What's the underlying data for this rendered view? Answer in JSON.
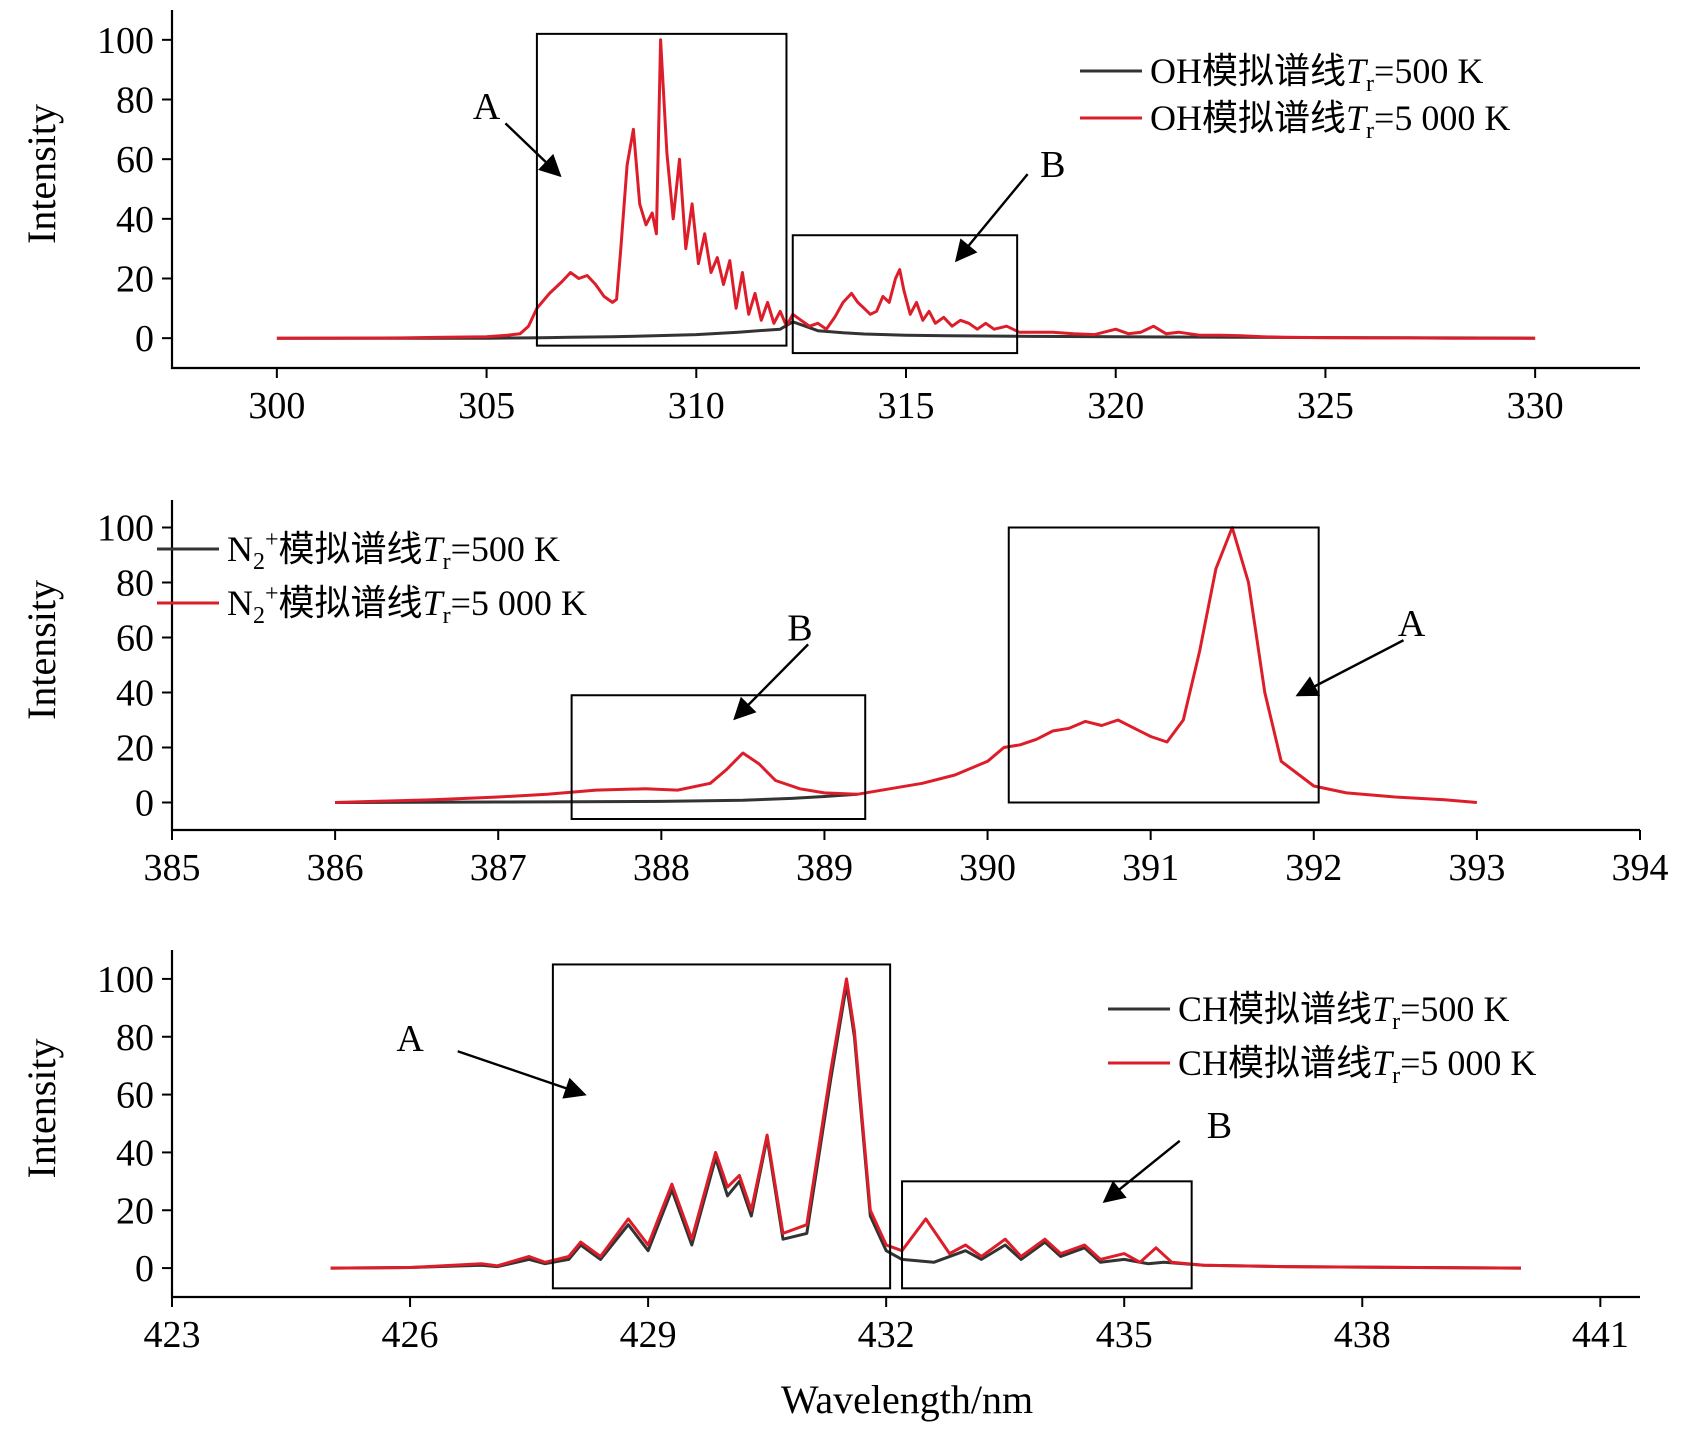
{
  "x_axis_title": "Wavelength/nm",
  "chart_data": [
    {
      "type": "line",
      "ylabel": "Intensity",
      "xlabel": "",
      "xlim": [
        297.5,
        332.5
      ],
      "ylim": [
        -10,
        110
      ],
      "xticks": [
        300,
        305,
        310,
        315,
        320,
        325,
        330
      ],
      "yticks": [
        0,
        20,
        40,
        60,
        80,
        100
      ],
      "legend_position": "top-right",
      "series": [
        {
          "legend": {
            "species": "OH",
            "text": "模拟谱线",
            "subscript": "r",
            "value": "=500 K"
          },
          "color": "#333333",
          "x": [
            300,
            305,
            306,
            306.5,
            307,
            308,
            309,
            310,
            311,
            312,
            312.3,
            312.6,
            312.9,
            313.5,
            314,
            315,
            316,
            318,
            320,
            323,
            325,
            330
          ],
          "y": [
            0,
            0,
            0.1,
            0.2,
            0.3,
            0.5,
            0.8,
            1.2,
            2,
            3,
            5.5,
            4,
            2.5,
            1.8,
            1.4,
            1,
            0.8,
            0.6,
            0.5,
            0.3,
            0.2,
            0
          ]
        },
        {
          "legend": {
            "species": "OH",
            "text": "模拟谱线",
            "subscript": "r",
            "value": "=5 000 K"
          },
          "color": "#dd1e2a",
          "x": [
            300,
            303,
            304,
            305,
            305.5,
            305.8,
            306,
            306.2,
            306.5,
            306.8,
            307,
            307.2,
            307.4,
            307.6,
            307.8,
            308,
            308.1,
            308.2,
            308.35,
            308.5,
            308.65,
            308.8,
            308.95,
            309.05,
            309.15,
            309.3,
            309.45,
            309.6,
            309.75,
            309.9,
            310.05,
            310.2,
            310.35,
            310.5,
            310.65,
            310.8,
            310.95,
            311.1,
            311.25,
            311.4,
            311.55,
            311.7,
            311.85,
            312.0,
            312.15,
            312.3,
            312.5,
            312.7,
            312.9,
            313.1,
            313.3,
            313.5,
            313.7,
            313.85,
            314.0,
            314.15,
            314.3,
            314.45,
            314.6,
            314.75,
            314.85,
            314.95,
            315.1,
            315.25,
            315.4,
            315.55,
            315.7,
            315.9,
            316.1,
            316.3,
            316.5,
            316.7,
            316.9,
            317.1,
            317.4,
            317.7,
            318.0,
            318.5,
            319.0,
            319.5,
            320.0,
            320.3,
            320.6,
            320.9,
            321.2,
            321.5,
            322.0,
            322.5,
            323.0,
            323.5,
            324,
            325,
            326,
            327,
            328,
            330
          ],
          "y": [
            0,
            0.1,
            0.3,
            0.5,
            1,
            1.5,
            4,
            10,
            15,
            19,
            22,
            20,
            21,
            18,
            14,
            12,
            13,
            30,
            58,
            70,
            45,
            38,
            42,
            35,
            100,
            62,
            40,
            60,
            30,
            45,
            25,
            35,
            22,
            27,
            18,
            26,
            10,
            22,
            8,
            15,
            6,
            12,
            5,
            9,
            4,
            8,
            6,
            4,
            5,
            3,
            7,
            12,
            15,
            12,
            10,
            8,
            9,
            14,
            12,
            20,
            23,
            16,
            8,
            12,
            6,
            9,
            5,
            7,
            4,
            6,
            5,
            3,
            5,
            3,
            4,
            2,
            2,
            2,
            1.5,
            1.2,
            3,
            1.5,
            2,
            4,
            1.5,
            2,
            1,
            1,
            0.8,
            0.5,
            0.3,
            0.2,
            0.1,
            0.1,
            0,
            0
          ]
        }
      ],
      "boxes": [
        {
          "label": "A",
          "x0": 306.2,
          "x1": 312.15,
          "y0": -2.5,
          "y1": 102
        },
        {
          "label": "B",
          "x0": 312.3,
          "x1": 317.65,
          "y0": -5,
          "y1": 34.5
        }
      ],
      "annotations": [
        {
          "text": "A",
          "x": 305.0,
          "y": 73.5,
          "arrow_from": [
            305.45,
            72
          ],
          "arrow_to": [
            306.75,
            54.5
          ]
        },
        {
          "text": "B",
          "x": 318.5,
          "y": 54,
          "arrow_from": [
            317.9,
            55
          ],
          "arrow_to": [
            316.2,
            26
          ]
        }
      ]
    },
    {
      "type": "line",
      "ylabel": "Intensity",
      "xlabel": "",
      "xlim": [
        385,
        394
      ],
      "ylim": [
        -10,
        110
      ],
      "xticks": [
        385,
        386,
        387,
        388,
        389,
        390,
        391,
        392,
        393,
        394
      ],
      "yticks": [
        0,
        20,
        40,
        60,
        80,
        100
      ],
      "legend_position": "top-left",
      "series": [
        {
          "legend": {
            "species": "N",
            "species_sub": "2",
            "species_sup": "+",
            "text": "模拟谱线",
            "subscript": "r",
            "value": "=500 K"
          },
          "color": "#333333",
          "x": [
            386,
            386.5,
            387,
            387.5,
            388,
            388.5,
            388.8,
            389,
            389.2
          ],
          "y": [
            0,
            0.1,
            0.2,
            0.3,
            0.4,
            0.8,
            1.5,
            2.2,
            3.0
          ]
        },
        {
          "legend": {
            "species": "N",
            "species_sub": "2",
            "species_sup": "+",
            "text": "模拟谱线",
            "subscript": "r",
            "value": "=5 000 K"
          },
          "color": "#dd1e2a",
          "x": [
            386,
            386.3,
            386.6,
            387,
            387.3,
            387.6,
            387.9,
            388.1,
            388.3,
            388.4,
            388.5,
            388.6,
            388.7,
            388.85,
            389,
            389.2,
            389.4,
            389.6,
            389.8,
            390,
            390.1,
            390.2,
            390.3,
            390.4,
            390.5,
            390.6,
            390.7,
            390.8,
            390.9,
            391,
            391.1,
            391.2,
            391.3,
            391.4,
            391.5,
            391.6,
            391.7,
            391.8,
            392,
            392.2,
            392.5,
            392.8,
            393
          ],
          "y": [
            0,
            0.5,
            1,
            2,
            3,
            4.5,
            5,
            4.5,
            7,
            12,
            18,
            14,
            8,
            5,
            3.5,
            3,
            5,
            7,
            10,
            15,
            20,
            21,
            23,
            26,
            27,
            29.5,
            28,
            30,
            27,
            24,
            22,
            30,
            55,
            85,
            100,
            80,
            40,
            15,
            6,
            3.5,
            2,
            1,
            0
          ]
        }
      ],
      "boxes": [
        {
          "label": "B",
          "x0": 387.45,
          "x1": 389.25,
          "y0": -6,
          "y1": 39
        },
        {
          "label": "A",
          "x0": 390.13,
          "x1": 392.03,
          "y0": 0,
          "y1": 100
        }
      ],
      "annotations": [
        {
          "text": "B",
          "x": 388.85,
          "y": 59,
          "arrow_from": [
            388.9,
            57.5
          ],
          "arrow_to": [
            388.45,
            30.5
          ]
        },
        {
          "text": "A",
          "x": 392.6,
          "y": 60.5,
          "arrow_from": [
            392.55,
            59
          ],
          "arrow_to": [
            391.9,
            39
          ]
        }
      ]
    },
    {
      "type": "line",
      "ylabel": "Intensity",
      "xlabel": "Wavelength/nm",
      "xlim": [
        423,
        441.5
      ],
      "ylim": [
        -10,
        110
      ],
      "xticks": [
        423,
        426,
        429,
        432,
        435,
        438,
        441
      ],
      "yticks": [
        0,
        20,
        40,
        60,
        80,
        100
      ],
      "legend_position": "top-right",
      "series": [
        {
          "legend": {
            "species": "CH",
            "text": "模拟谱线",
            "subscript": "r",
            "value": "=500 K"
          },
          "color": "#333333",
          "x": [
            425,
            426,
            426.9,
            427.1,
            427.5,
            427.7,
            428,
            428.15,
            428.4,
            428.75,
            429,
            429.3,
            429.55,
            429.85,
            430,
            430.15,
            430.3,
            430.5,
            430.7,
            431,
            431.3,
            431.5,
            431.6,
            431.8,
            432,
            432.2,
            432.6,
            433,
            433.2,
            433.5,
            433.7,
            434,
            434.2,
            434.5,
            434.7,
            435,
            435.3,
            435.5,
            436,
            437,
            440
          ],
          "y": [
            0,
            0.2,
            1,
            0.5,
            3,
            1.5,
            3,
            8,
            3,
            15,
            6,
            27,
            8,
            38,
            25,
            30,
            18,
            45,
            10,
            12,
            65,
            98,
            80,
            18,
            6,
            3,
            2,
            6,
            3,
            8,
            3,
            9,
            4,
            7,
            2,
            3,
            1.5,
            2,
            1,
            0.5,
            0
          ]
        },
        {
          "legend": {
            "species": "CH",
            "text": "模拟谱线",
            "subscript": "r",
            "value": "=5 000 K"
          },
          "color": "#dd1e2a",
          "x": [
            425,
            426,
            426.9,
            427.1,
            427.5,
            427.7,
            428,
            428.15,
            428.4,
            428.75,
            429,
            429.3,
            429.55,
            429.85,
            430,
            430.15,
            430.3,
            430.5,
            430.7,
            431,
            431.3,
            431.5,
            431.6,
            431.8,
            432,
            432.2,
            432.5,
            432.8,
            433,
            433.2,
            433.5,
            433.7,
            434,
            434.2,
            434.5,
            434.7,
            435,
            435.2,
            435.4,
            435.6,
            436,
            437,
            440
          ],
          "y": [
            0,
            0.2,
            1.5,
            0.8,
            4,
            2,
            4,
            9,
            4,
            17,
            8,
            29,
            10,
            40,
            28,
            32,
            20,
            46,
            12,
            15,
            68,
            100,
            82,
            20,
            8,
            6,
            17,
            5,
            8,
            4,
            10,
            4,
            10,
            5,
            8,
            3,
            5,
            2,
            7,
            2,
            1,
            0.5,
            0
          ]
        }
      ],
      "boxes": [
        {
          "label": "A",
          "x0": 427.8,
          "x1": 432.05,
          "y0": -7,
          "y1": 105
        },
        {
          "label": "B",
          "x0": 432.2,
          "x1": 435.85,
          "y0": -7,
          "y1": 30
        }
      ],
      "annotations": [
        {
          "text": "A",
          "x": 426.0,
          "y": 75,
          "arrow_from": [
            426.6,
            75
          ],
          "arrow_to": [
            428.2,
            60
          ]
        },
        {
          "text": "B",
          "x": 436.2,
          "y": 45,
          "arrow_from": [
            435.7,
            44
          ],
          "arrow_to": [
            434.75,
            23
          ]
        }
      ]
    }
  ]
}
